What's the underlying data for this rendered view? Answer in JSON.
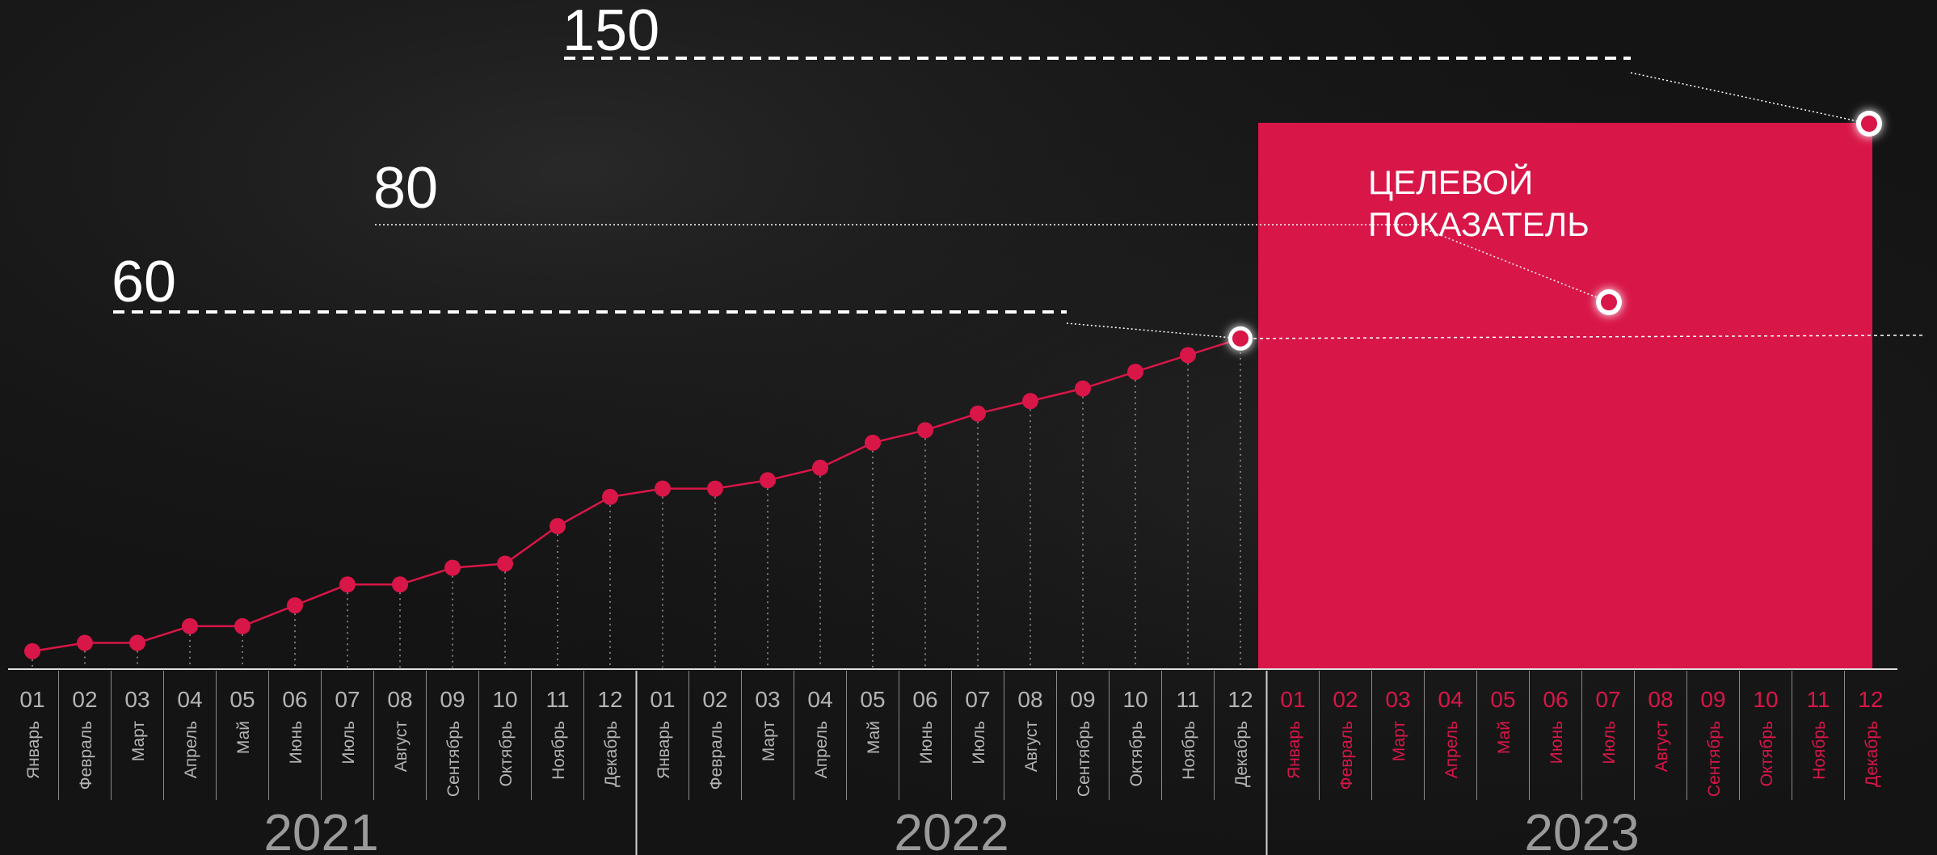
{
  "chart_data": {
    "type": "line",
    "title": "",
    "xlabel": "",
    "ylabel": "",
    "years": [
      "2021",
      "2022",
      "2023"
    ],
    "month_numbers": [
      "01",
      "02",
      "03",
      "04",
      "05",
      "06",
      "07",
      "08",
      "09",
      "10",
      "11",
      "12"
    ],
    "month_names": [
      "Январь",
      "Февраль",
      "Март",
      "Апрель",
      "Май",
      "Июнь",
      "Июль",
      "Август",
      "Сентябрь",
      "Октябрь",
      "Ноябрь",
      "Декабрь"
    ],
    "series": [
      {
        "values": [
          1,
          3,
          3,
          7,
          7,
          12,
          17,
          17,
          21,
          22,
          31,
          38,
          40,
          40,
          42,
          45,
          51,
          54,
          58,
          61,
          64,
          68,
          72,
          76
        ]
      }
    ],
    "ylim": [
      0,
      150
    ],
    "target_block": {
      "label": "ЦЕЛЕВОЙ\nПОКАЗАТЕЛЬ",
      "period": "2023"
    },
    "targets": [
      {
        "label": "60",
        "value": 60,
        "month_index": 23
      },
      {
        "label": "80",
        "value": 80,
        "month_index": 30
      },
      {
        "label": "150",
        "value": 150,
        "month_index": 35
      }
    ]
  },
  "colors": {
    "background": "#141414",
    "accent": "#d81648",
    "text_light": "#ffffff",
    "text_muted": "#b4b4b4",
    "axis": "#e0e0e0"
  }
}
